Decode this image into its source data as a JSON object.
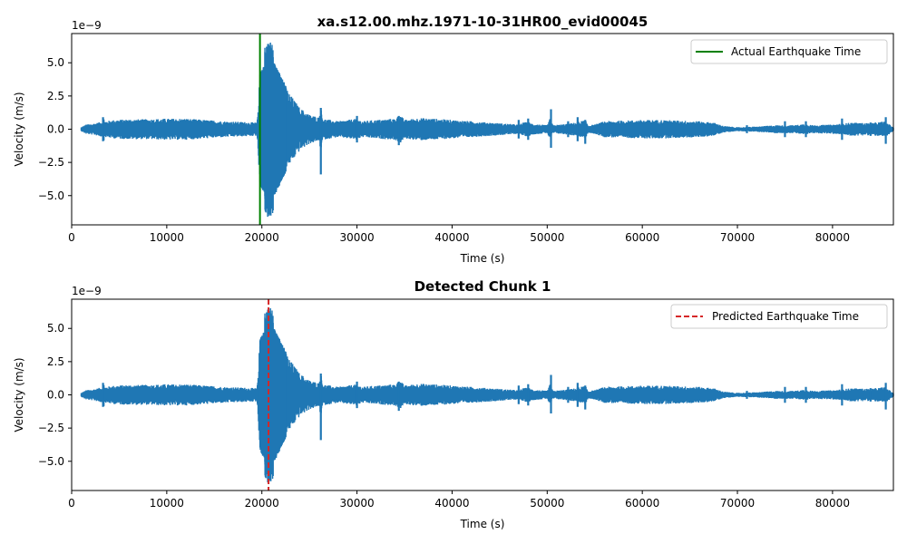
{
  "chart_data": [
    {
      "type": "line",
      "title": "xa.s12.00.mhz.1971-10-31HR00_evid00045",
      "xlabel": "Time (s)",
      "ylabel": "Velocity (m/s)",
      "y_offset_label": "1e−9",
      "xlim": [
        0,
        86400
      ],
      "ylim": [
        -7.2,
        7.2
      ],
      "xticks": [
        0,
        10000,
        20000,
        30000,
        40000,
        50000,
        60000,
        70000,
        80000
      ],
      "xtick_labels": [
        "0",
        "10000",
        "20000",
        "30000",
        "40000",
        "50000",
        "60000",
        "70000",
        "80000"
      ],
      "yticks": [
        -5.0,
        -2.5,
        0.0,
        2.5,
        5.0
      ],
      "ytick_labels": [
        "−5.0",
        "−2.5",
        "0.0",
        "2.5",
        "5.0"
      ],
      "grid": false,
      "legend_position": "top-right",
      "series": [
        {
          "kind": "waveform",
          "color": "#1f77b4",
          "envelope": [
            [
              1000,
              0.15
            ],
            [
              1500,
              0.35
            ],
            [
              2500,
              0.45
            ],
            [
              3300,
              0.6
            ],
            [
              3400,
              0.9
            ],
            [
              3500,
              0.6
            ],
            [
              4500,
              0.7
            ],
            [
              6000,
              0.75
            ],
            [
              8000,
              0.75
            ],
            [
              10000,
              0.8
            ],
            [
              12000,
              0.8
            ],
            [
              14000,
              0.7
            ],
            [
              16000,
              0.6
            ],
            [
              18000,
              0.55
            ],
            [
              19500,
              0.5
            ],
            [
              19800,
              4.2
            ],
            [
              20200,
              4.8
            ],
            [
              20600,
              5.3
            ],
            [
              21000,
              5.2
            ],
            [
              21500,
              4.8
            ],
            [
              22000,
              4.0
            ],
            [
              23000,
              2.6
            ],
            [
              24000,
              1.6
            ],
            [
              25000,
              1.1
            ],
            [
              26000,
              0.9
            ],
            [
              26200,
              1.6
            ],
            [
              26400,
              0.8
            ],
            [
              28000,
              0.6
            ],
            [
              30000,
              0.8
            ],
            [
              30500,
              0.6
            ],
            [
              32000,
              0.7
            ],
            [
              34000,
              0.8
            ],
            [
              34500,
              1.1
            ],
            [
              35000,
              0.7
            ],
            [
              36500,
              0.85
            ],
            [
              38000,
              0.8
            ],
            [
              40000,
              0.7
            ],
            [
              42000,
              0.6
            ],
            [
              44000,
              0.5
            ],
            [
              46000,
              0.4
            ],
            [
              47000,
              0.35
            ],
            [
              47500,
              0.5
            ],
            [
              48000,
              0.55
            ],
            [
              48500,
              0.4
            ],
            [
              50000,
              0.3
            ],
            [
              50300,
              0.8
            ],
            [
              50600,
              0.3
            ],
            [
              52000,
              0.4
            ],
            [
              53000,
              0.5
            ],
            [
              54000,
              0.7
            ],
            [
              54300,
              0.3
            ],
            [
              55000,
              0.35
            ],
            [
              56000,
              0.6
            ],
            [
              58000,
              0.65
            ],
            [
              60000,
              0.7
            ],
            [
              62000,
              0.7
            ],
            [
              64000,
              0.65
            ],
            [
              66000,
              0.6
            ],
            [
              67500,
              0.5
            ],
            [
              68500,
              0.25
            ],
            [
              70000,
              0.15
            ],
            [
              72000,
              0.2
            ],
            [
              74000,
              0.3
            ],
            [
              76000,
              0.3
            ],
            [
              77000,
              0.4
            ],
            [
              78000,
              0.3
            ],
            [
              80000,
              0.35
            ],
            [
              82000,
              0.5
            ],
            [
              84000,
              0.45
            ],
            [
              85500,
              0.6
            ],
            [
              86400,
              0.15
            ]
          ],
          "spikes": [
            [
              3300,
              0.9,
              -0.9
            ],
            [
              26200,
              1.6,
              -3.4
            ],
            [
              30000,
              1.0,
              -1.0
            ],
            [
              34400,
              1.0,
              -1.2
            ],
            [
              47000,
              0.7,
              -0.7
            ],
            [
              48000,
              0.8,
              -0.8
            ],
            [
              50400,
              1.5,
              -1.4
            ],
            [
              52200,
              0.6,
              -0.6
            ],
            [
              53200,
              0.9,
              -0.9
            ],
            [
              54000,
              0.7,
              -1.1
            ],
            [
              71000,
              0.3,
              -0.3
            ],
            [
              75000,
              0.6,
              -0.6
            ],
            [
              77200,
              0.6,
              -0.6
            ],
            [
              81000,
              0.8,
              -0.8
            ],
            [
              84000,
              0.5,
              -0.5
            ],
            [
              85600,
              0.9,
              -1.1
            ]
          ]
        },
        {
          "name": "Actual Earthquake Time",
          "kind": "vline",
          "x": 19800,
          "color": "#008000",
          "linestyle": "solid"
        }
      ]
    },
    {
      "type": "line",
      "title": "Detected Chunk 1",
      "xlabel": "Time (s)",
      "ylabel": "Velocity (m/s)",
      "y_offset_label": "1e−9",
      "xlim": [
        0,
        86400
      ],
      "ylim": [
        -7.2,
        7.2
      ],
      "xticks": [
        0,
        10000,
        20000,
        30000,
        40000,
        50000,
        60000,
        70000,
        80000
      ],
      "xtick_labels": [
        "0",
        "10000",
        "20000",
        "30000",
        "40000",
        "50000",
        "60000",
        "70000",
        "80000"
      ],
      "yticks": [
        -5.0,
        -2.5,
        0.0,
        2.5,
        5.0
      ],
      "ytick_labels": [
        "−5.0",
        "−2.5",
        "0.0",
        "2.5",
        "5.0"
      ],
      "grid": false,
      "legend_position": "top-right",
      "series": [
        {
          "kind": "waveform",
          "color": "#1f77b4",
          "same_as": 0
        },
        {
          "name": "Predicted Earthquake Time",
          "kind": "vline",
          "x": 20700,
          "color": "#d62728",
          "linestyle": "dashed"
        }
      ]
    }
  ]
}
